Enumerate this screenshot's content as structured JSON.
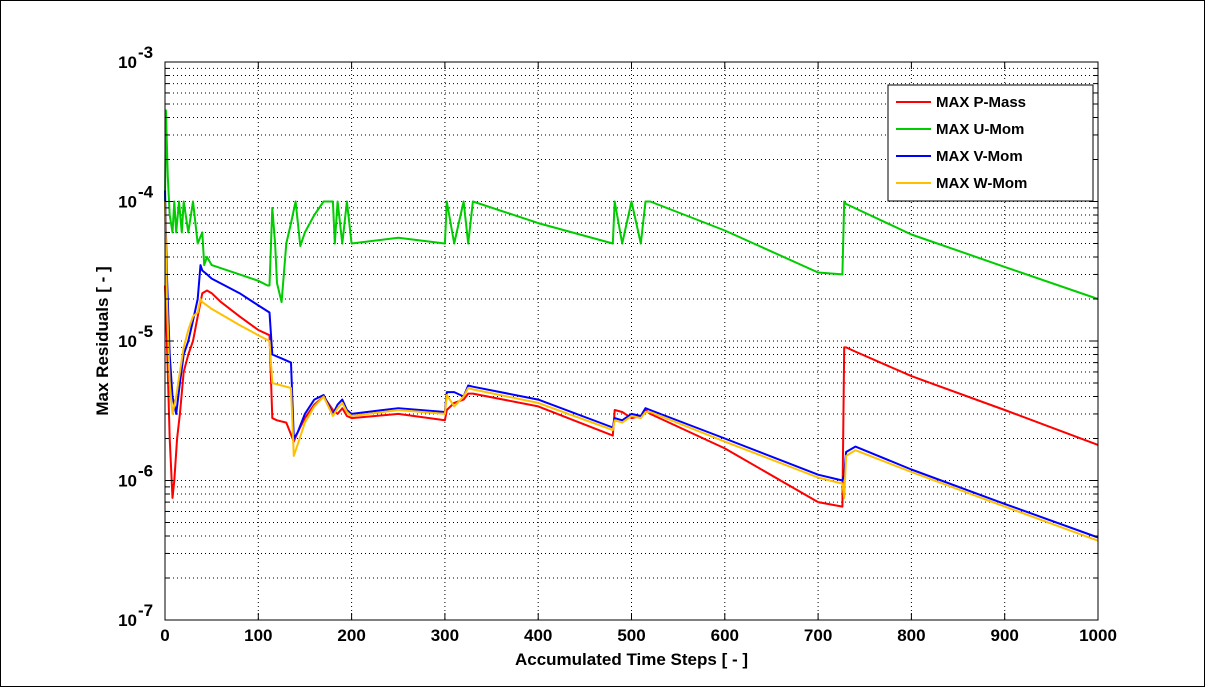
{
  "chart_data": {
    "type": "line",
    "xlabel": "Accumulated Time Steps   [ - ]",
    "ylabel": "Max Residuals   [ - ]",
    "xlim": [
      0,
      1000
    ],
    "ylim": [
      1e-07,
      0.001
    ],
    "yscale": "log",
    "grid": true,
    "legend_position": "top-right",
    "x_ticks": [
      "0",
      "100",
      "200",
      "300",
      "400",
      "500",
      "600",
      "700",
      "800",
      "900",
      "1000"
    ],
    "y_ticks": [
      {
        "base": "10",
        "exp": "-7"
      },
      {
        "base": "10",
        "exp": "-6"
      },
      {
        "base": "10",
        "exp": "-5"
      },
      {
        "base": "10",
        "exp": "-4"
      },
      {
        "base": "10",
        "exp": "-3"
      }
    ],
    "series": [
      {
        "name": "MAX P-Mass",
        "color": "#ff0000",
        "x": [
          0,
          2,
          5,
          8,
          10,
          13,
          16,
          20,
          25,
          30,
          35,
          40,
          45,
          50,
          60,
          80,
          100,
          112,
          115,
          120,
          130,
          138,
          142,
          150,
          160,
          170,
          180,
          185,
          190,
          195,
          200,
          250,
          300,
          302,
          310,
          320,
          325,
          330,
          400,
          480,
          482,
          490,
          500,
          510,
          515,
          520,
          600,
          700,
          726,
          728,
          730,
          740,
          800,
          900,
          1000
        ],
        "y": [
          2.5e-05,
          1e-05,
          2e-06,
          7.5e-07,
          1e-06,
          2e-06,
          3e-06,
          6e-06,
          8e-06,
          1e-05,
          1.5e-05,
          2.2e-05,
          2.3e-05,
          2.2e-05,
          1.9e-05,
          1.5e-05,
          1.2e-05,
          1.1e-05,
          2.8e-06,
          2.7e-06,
          2.6e-06,
          1.9e-06,
          2.2e-06,
          2.8e-06,
          3.5e-06,
          4e-06,
          3.2e-06,
          3e-06,
          3.3e-06,
          2.9e-06,
          2.8e-06,
          3e-06,
          2.7e-06,
          3.2e-06,
          3.6e-06,
          3.8e-06,
          4.2e-06,
          4.2e-06,
          3.4e-06,
          2.1e-06,
          3.2e-06,
          3.1e-06,
          2.8e-06,
          2.9e-06,
          3.2e-06,
          3e-06,
          1.7e-06,
          7e-07,
          6.5e-07,
          9e-06,
          9e-06,
          8.4e-06,
          5.6e-06,
          3.2e-06,
          1.8e-06
        ]
      },
      {
        "name": "MAX U-Mom",
        "color": "#00cc00",
        "x": [
          0,
          1,
          3,
          5,
          8,
          10,
          12,
          15,
          18,
          20,
          25,
          30,
          35,
          40,
          42,
          45,
          50,
          80,
          100,
          110,
          112,
          115,
          118,
          120,
          125,
          130,
          135,
          140,
          145,
          150,
          160,
          170,
          180,
          182,
          185,
          190,
          195,
          200,
          250,
          300,
          302,
          310,
          320,
          325,
          330,
          400,
          480,
          482,
          490,
          500,
          510,
          515,
          520,
          600,
          700,
          726,
          728,
          730,
          800,
          900,
          1000
        ],
        "y": [
          0.0001,
          0.00045,
          0.00015,
          8e-05,
          6e-05,
          0.0001,
          6e-05,
          0.0001,
          6e-05,
          0.0001,
          6e-05,
          0.0001,
          5e-05,
          6e-05,
          3.5e-05,
          4e-05,
          3.5e-05,
          3e-05,
          2.7e-05,
          2.5e-05,
          2.5e-05,
          9e-05,
          5e-05,
          2.6e-05,
          1.9e-05,
          5e-05,
          7e-05,
          0.0001,
          4.8e-05,
          6e-05,
          8e-05,
          0.0001,
          0.0001,
          5e-05,
          0.0001,
          5e-05,
          0.0001,
          5e-05,
          5.5e-05,
          5e-05,
          0.0001,
          5e-05,
          0.0001,
          5e-05,
          0.0001,
          7e-05,
          5e-05,
          0.0001,
          5e-05,
          0.0001,
          5e-05,
          0.0001,
          0.0001,
          6.2e-05,
          3.1e-05,
          3e-05,
          0.0001,
          9.6e-05,
          5.8e-05,
          3.4e-05,
          2e-05
        ]
      },
      {
        "name": "MAX V-Mom",
        "color": "#0000ff",
        "x": [
          0,
          2,
          5,
          8,
          12,
          16,
          20,
          25,
          30,
          35,
          38,
          40,
          45,
          50,
          80,
          100,
          112,
          115,
          125,
          135,
          138,
          142,
          150,
          160,
          170,
          180,
          185,
          190,
          195,
          200,
          250,
          300,
          302,
          310,
          320,
          325,
          330,
          400,
          480,
          482,
          490,
          500,
          510,
          515,
          520,
          600,
          700,
          726,
          728,
          730,
          740,
          800,
          900,
          1000
        ],
        "y": [
          0.00012,
          3e-05,
          8e-06,
          4e-06,
          3e-06,
          5e-06,
          8e-06,
          1e-05,
          1.4e-05,
          2e-05,
          3.5e-05,
          3.2e-05,
          3e-05,
          2.8e-05,
          2.2e-05,
          1.8e-05,
          1.6e-05,
          8e-06,
          7.5e-06,
          7e-06,
          2e-06,
          2.2e-06,
          3e-06,
          3.8e-06,
          4.1e-06,
          3e-06,
          3.5e-06,
          3.8e-06,
          3.2e-06,
          3e-06,
          3.3e-06,
          3.1e-06,
          4.3e-06,
          4.3e-06,
          4e-06,
          4.8e-06,
          4.7e-06,
          3.8e-06,
          2.4e-06,
          2.8e-06,
          2.7e-06,
          3e-06,
          2.9e-06,
          3.3e-06,
          3.2e-06,
          2e-06,
          1.1e-06,
          1e-06,
          1.1e-06,
          1.6e-06,
          1.75e-06,
          1.2e-06,
          6.8e-07,
          3.9e-07
        ]
      },
      {
        "name": "MAX W-Mom",
        "color": "#ffc000",
        "x": [
          0,
          2,
          5,
          8,
          12,
          16,
          20,
          25,
          30,
          35,
          38,
          40,
          45,
          50,
          80,
          100,
          112,
          115,
          125,
          135,
          138,
          142,
          150,
          160,
          170,
          180,
          185,
          190,
          195,
          200,
          250,
          300,
          302,
          310,
          320,
          325,
          330,
          400,
          480,
          482,
          490,
          500,
          510,
          515,
          520,
          600,
          700,
          726,
          728,
          730,
          740,
          800,
          900,
          1000
        ],
        "y": [
          0.0001,
          2e-05,
          5e-06,
          3e-06,
          4e-06,
          6e-06,
          9e-06,
          1.2e-05,
          1.5e-05,
          1.6e-05,
          2e-05,
          1.9e-05,
          1.8e-05,
          1.7e-05,
          1.3e-05,
          1.1e-05,
          1e-05,
          5e-06,
          4.8e-06,
          4.6e-06,
          1.5e-06,
          1.8e-06,
          2.6e-06,
          3.4e-06,
          4e-06,
          2.9e-06,
          3.3e-06,
          3.6e-06,
          3.1e-06,
          2.9e-06,
          3.2e-06,
          3e-06,
          4.1e-06,
          3.4e-06,
          4e-06,
          4.6e-06,
          4.5e-06,
          3.6e-06,
          2.3e-06,
          2.7e-06,
          2.6e-06,
          2.9e-06,
          2.8e-06,
          3.1e-06,
          3.1e-06,
          1.9e-06,
          1.05e-06,
          9.5e-07,
          7.5e-07,
          1.5e-06,
          1.65e-06,
          1.15e-06,
          6.5e-07,
          3.7e-07
        ]
      }
    ]
  }
}
